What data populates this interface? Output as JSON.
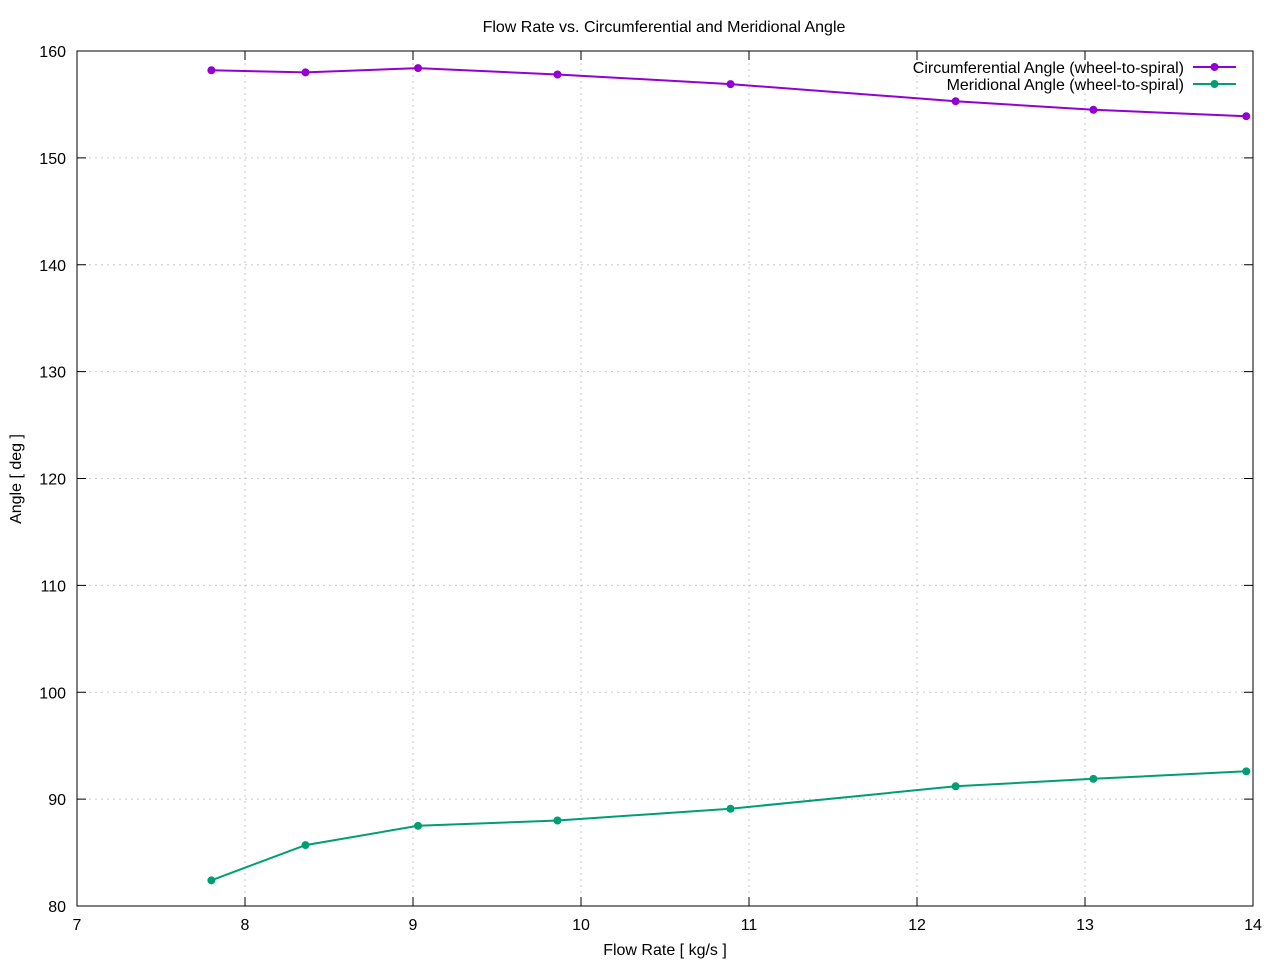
{
  "chart_data": {
    "type": "line",
    "title": "Flow Rate vs. Circumferential and Meridional Angle",
    "xlabel": "Flow Rate [ kg/s ]",
    "ylabel": "Angle [ deg ]",
    "xlim": [
      7,
      14
    ],
    "ylim": [
      80,
      160
    ],
    "xticks": [
      7,
      8,
      9,
      10,
      11,
      12,
      13,
      14
    ],
    "yticks": [
      80,
      90,
      100,
      110,
      120,
      130,
      140,
      150,
      160
    ],
    "grid": true,
    "legend_position": "top-right",
    "series": [
      {
        "name": "Circumferential Angle (wheel-to-spiral)",
        "color": "#9400d3",
        "x": [
          7.8,
          8.36,
          9.03,
          9.86,
          10.89,
          12.23,
          13.05,
          13.96
        ],
        "y": [
          158.2,
          158.0,
          158.4,
          157.8,
          156.9,
          155.3,
          154.5,
          153.9
        ]
      },
      {
        "name": "Meridional Angle (wheel-to-spiral)",
        "color": "#009e73",
        "x": [
          7.8,
          8.36,
          9.03,
          9.86,
          10.89,
          12.23,
          13.05,
          13.96
        ],
        "y": [
          82.4,
          85.7,
          87.5,
          88.0,
          89.1,
          91.2,
          91.9,
          92.6
        ]
      }
    ]
  }
}
